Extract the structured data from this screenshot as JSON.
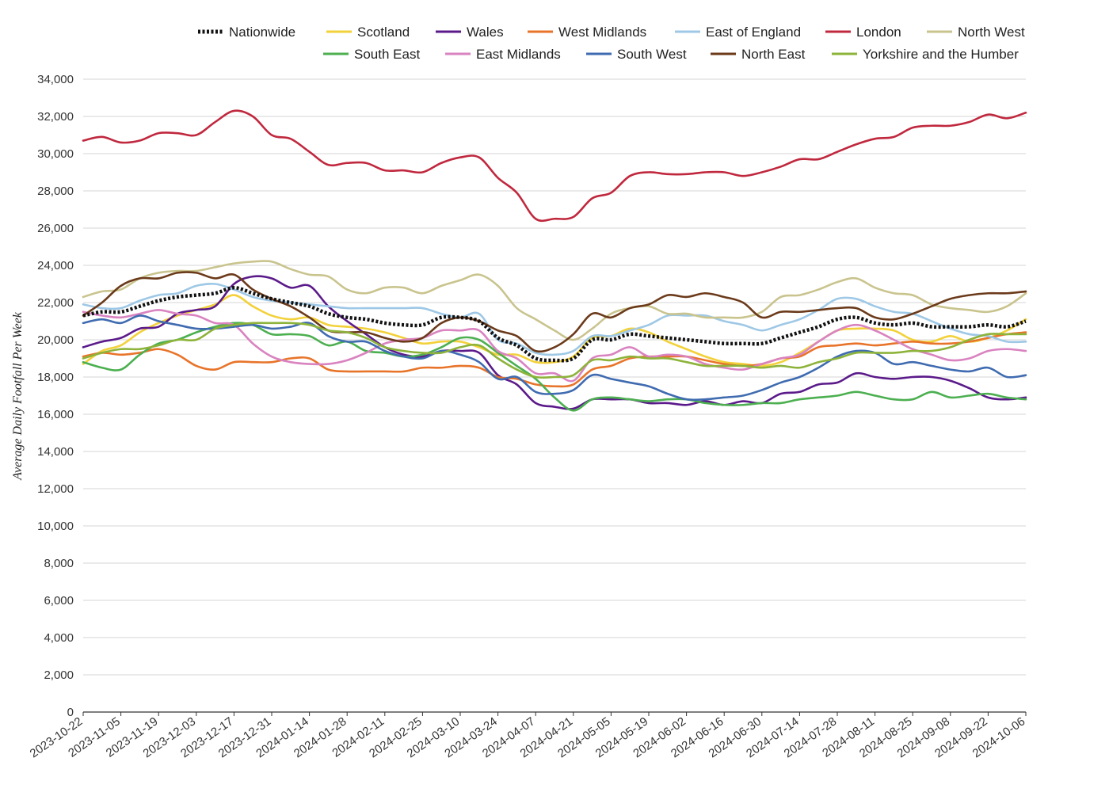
{
  "chart_data": {
    "type": "line",
    "title": "",
    "xlabel": "",
    "ylabel": "Average Daily Footfall Per Week",
    "ylim": [
      0,
      34000
    ],
    "ytick_step": 2000,
    "grid": true,
    "legend_position": "top",
    "x_tick_labels": [
      "2023-10-22",
      "2023-11-05",
      "2023-11-19",
      "2023-12-03",
      "2023-12-17",
      "2023-12-31",
      "2024-01-14",
      "2024-01-28",
      "2024-02-11",
      "2024-02-25",
      "2024-03-10",
      "2024-03-24",
      "2024-04-07",
      "2024-04-21",
      "2024-05-05",
      "2024-05-19",
      "2024-06-02",
      "2024-06-16",
      "2024-06-30",
      "2024-07-14",
      "2024-07-28",
      "2024-08-11",
      "2024-08-25",
      "2024-09-08",
      "2024-09-22",
      "2024-10-06"
    ],
    "x": [
      "2023-10-22",
      "2023-10-29",
      "2023-11-05",
      "2023-11-12",
      "2023-11-19",
      "2023-11-26",
      "2023-12-03",
      "2023-12-10",
      "2023-12-17",
      "2023-12-24",
      "2023-12-31",
      "2024-01-07",
      "2024-01-14",
      "2024-01-21",
      "2024-01-28",
      "2024-02-04",
      "2024-02-11",
      "2024-02-18",
      "2024-02-25",
      "2024-03-03",
      "2024-03-10",
      "2024-03-17",
      "2024-03-24",
      "2024-03-31",
      "2024-04-07",
      "2024-04-14",
      "2024-04-21",
      "2024-04-28",
      "2024-05-05",
      "2024-05-12",
      "2024-05-19",
      "2024-05-26",
      "2024-06-02",
      "2024-06-09",
      "2024-06-16",
      "2024-06-23",
      "2024-06-30",
      "2024-07-07",
      "2024-07-14",
      "2024-07-21",
      "2024-07-28",
      "2024-08-04",
      "2024-08-11",
      "2024-08-18",
      "2024-08-25",
      "2024-09-01",
      "2024-09-08",
      "2024-09-15",
      "2024-09-22",
      "2024-09-29",
      "2024-10-06"
    ],
    "series": [
      {
        "name": "Nationwide",
        "color": "#111111",
        "dashed": true,
        "values": [
          21300,
          21500,
          21500,
          21800,
          22100,
          22300,
          22400,
          22500,
          22800,
          22500,
          22200,
          22000,
          21800,
          21400,
          21200,
          21100,
          20900,
          20800,
          20800,
          21200,
          21200,
          21000,
          20100,
          19700,
          19000,
          18900,
          19000,
          20000,
          20000,
          20300,
          20200,
          20100,
          20000,
          19900,
          19800,
          19800,
          19800,
          20100,
          20400,
          20700,
          21100,
          21200,
          20900,
          20800,
          20900,
          20700,
          20700,
          20700,
          20800,
          20700,
          21000
        ]
      },
      {
        "name": "Scotland",
        "color": "#F2D13A",
        "values": [
          18700,
          19400,
          19700,
          20400,
          20900,
          21300,
          21600,
          21900,
          22400,
          21800,
          21300,
          21100,
          21200,
          20800,
          20700,
          20600,
          20400,
          20100,
          19800,
          19900,
          19900,
          19600,
          19200,
          19200,
          18800,
          18800,
          19100,
          20100,
          20200,
          20600,
          20400,
          19900,
          19500,
          19100,
          18800,
          18700,
          18600,
          18800,
          19300,
          19900,
          20500,
          20600,
          20600,
          20500,
          20000,
          19900,
          20200,
          19900,
          20100,
          20500,
          21100
        ]
      },
      {
        "name": "Wales",
        "color": "#5B1A8A",
        "values": [
          19600,
          19900,
          20100,
          20600,
          20700,
          21400,
          21600,
          21800,
          23000,
          23400,
          23300,
          22800,
          22900,
          21800,
          21000,
          20300,
          19600,
          19200,
          19100,
          19400,
          19400,
          19300,
          18100,
          17600,
          16600,
          16400,
          16300,
          16800,
          16800,
          16800,
          16600,
          16600,
          16500,
          16700,
          16500,
          16700,
          16600,
          17100,
          17200,
          17600,
          17700,
          18200,
          18000,
          17900,
          18000,
          18000,
          17800,
          17400,
          16900,
          16800,
          16900
        ]
      },
      {
        "name": "West Midlands",
        "color": "#E8742A",
        "values": [
          19100,
          19300,
          19200,
          19300,
          19500,
          19200,
          18600,
          18400,
          18800,
          18800,
          18800,
          19000,
          19000,
          18400,
          18300,
          18300,
          18300,
          18300,
          18500,
          18500,
          18600,
          18500,
          18000,
          17900,
          17600,
          17500,
          17600,
          18400,
          18600,
          19000,
          19100,
          19100,
          19100,
          18900,
          18700,
          18600,
          18700,
          19000,
          19100,
          19600,
          19700,
          19800,
          19700,
          19800,
          19900,
          19800,
          19800,
          19900,
          20100,
          20300,
          20400
        ]
      },
      {
        "name": "East of England",
        "color": "#9EC8E6",
        "values": [
          21900,
          21700,
          21700,
          22100,
          22400,
          22500,
          22900,
          23000,
          22700,
          22300,
          22100,
          22000,
          21900,
          21800,
          21700,
          21700,
          21700,
          21700,
          21700,
          21400,
          21200,
          21400,
          20000,
          19800,
          19300,
          19200,
          19400,
          20200,
          20200,
          20500,
          20800,
          21300,
          21300,
          21300,
          21000,
          20800,
          20500,
          20800,
          21100,
          21600,
          22200,
          22200,
          21800,
          21500,
          21400,
          21000,
          20600,
          20300,
          20200,
          19900,
          19900
        ]
      },
      {
        "name": "London",
        "color": "#C0283E",
        "values": [
          30700,
          30900,
          30600,
          30700,
          31100,
          31100,
          31000,
          31700,
          32300,
          32000,
          31000,
          30800,
          30100,
          29400,
          29500,
          29500,
          29100,
          29100,
          29000,
          29500,
          29800,
          29800,
          28700,
          27900,
          26500,
          26500,
          26600,
          27600,
          27900,
          28800,
          29000,
          28900,
          28900,
          29000,
          29000,
          28800,
          29000,
          29300,
          29700,
          29700,
          30100,
          30500,
          30800,
          30900,
          31400,
          31500,
          31500,
          31700,
          32100,
          31900,
          32200
        ]
      },
      {
        "name": "North West",
        "color": "#C9C48E",
        "values": [
          22300,
          22600,
          22700,
          23300,
          23600,
          23700,
          23700,
          23900,
          24100,
          24200,
          24200,
          23800,
          23500,
          23400,
          22700,
          22500,
          22800,
          22800,
          22500,
          22900,
          23200,
          23500,
          22900,
          21700,
          21100,
          20500,
          20000,
          20600,
          21400,
          21700,
          21800,
          21400,
          21400,
          21200,
          21200,
          21200,
          21500,
          22300,
          22400,
          22700,
          23100,
          23300,
          22800,
          22500,
          22400,
          21900,
          21700,
          21600,
          21500,
          21800,
          22500
        ]
      },
      {
        "name": "South East",
        "color": "#4CAF50",
        "values": [
          18800,
          18500,
          18400,
          19200,
          19800,
          20000,
          20400,
          20700,
          20900,
          20800,
          20300,
          20300,
          20200,
          19700,
          19900,
          19400,
          19300,
          19100,
          19200,
          19600,
          20100,
          20000,
          19300,
          18600,
          17900,
          16900,
          16200,
          16800,
          16900,
          16800,
          16700,
          16800,
          16800,
          16600,
          16500,
          16500,
          16600,
          16600,
          16800,
          16900,
          17000,
          17200,
          17000,
          16800,
          16800,
          17200,
          16900,
          17000,
          17100,
          16900,
          16800
        ]
      },
      {
        "name": "East Midlands",
        "color": "#D983C0",
        "values": [
          21500,
          21300,
          21200,
          21400,
          21600,
          21400,
          21300,
          20900,
          20800,
          19800,
          19100,
          18800,
          18700,
          18700,
          18900,
          19300,
          19800,
          20000,
          20100,
          20500,
          20500,
          20500,
          19400,
          19000,
          18200,
          18200,
          17800,
          19000,
          19200,
          19600,
          19100,
          19200,
          19100,
          18700,
          18500,
          18400,
          18700,
          19000,
          19200,
          19900,
          20500,
          20800,
          20500,
          20000,
          19500,
          19200,
          18900,
          19000,
          19400,
          19500,
          19400
        ]
      },
      {
        "name": "South West",
        "color": "#3F6BB0",
        "values": [
          20900,
          21100,
          20900,
          21300,
          21000,
          20800,
          20600,
          20600,
          20700,
          20800,
          20600,
          20700,
          20900,
          20200,
          19900,
          19900,
          19400,
          19100,
          19000,
          19400,
          19200,
          18800,
          17900,
          18000,
          17200,
          17100,
          17300,
          18100,
          17900,
          17700,
          17500,
          17100,
          16800,
          16800,
          16900,
          17000,
          17300,
          17700,
          18000,
          18500,
          19100,
          19400,
          19300,
          18700,
          18800,
          18600,
          18400,
          18300,
          18500,
          18000,
          18100
        ]
      },
      {
        "name": "North East",
        "color": "#6B3A1A",
        "values": [
          21300,
          22000,
          22900,
          23300,
          23300,
          23600,
          23600,
          23300,
          23500,
          22700,
          22200,
          21800,
          21200,
          20500,
          20400,
          20400,
          20100,
          19900,
          20100,
          20900,
          21200,
          21000,
          20500,
          20200,
          19400,
          19600,
          20300,
          21400,
          21200,
          21700,
          21900,
          22400,
          22300,
          22500,
          22300,
          22000,
          21200,
          21500,
          21500,
          21600,
          21700,
          21700,
          21200,
          21100,
          21400,
          21800,
          22200,
          22400,
          22500,
          22500,
          22600
        ]
      },
      {
        "name": "Yorkshire and the Humber",
        "color": "#8DB33A",
        "values": [
          19000,
          19300,
          19500,
          19500,
          19700,
          20000,
          20000,
          20600,
          20800,
          20900,
          20900,
          20900,
          20800,
          20500,
          20400,
          20100,
          19600,
          19400,
          19300,
          19300,
          19600,
          19700,
          19000,
          18400,
          18000,
          18000,
          18100,
          18900,
          18900,
          19100,
          19000,
          19000,
          18800,
          18600,
          18600,
          18600,
          18500,
          18600,
          18500,
          18800,
          19000,
          19300,
          19300,
          19300,
          19400,
          19400,
          19600,
          20000,
          20300,
          20300,
          20300
        ]
      }
    ]
  }
}
